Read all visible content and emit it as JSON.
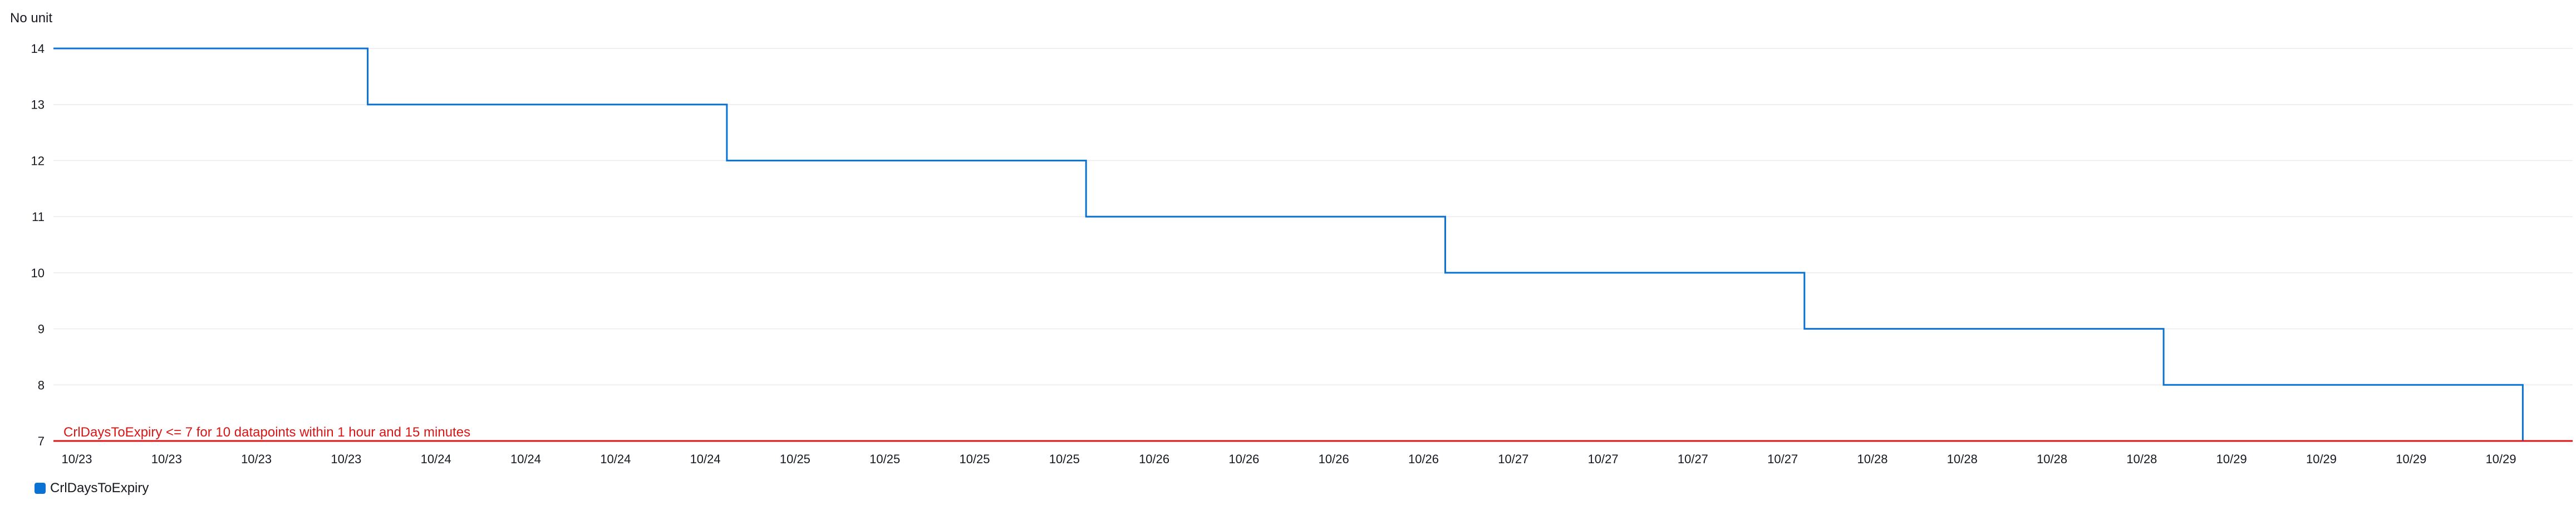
{
  "chart_data": {
    "type": "line",
    "unit_label": "No unit",
    "y_ticks": [
      7,
      8,
      9,
      10,
      11,
      12,
      13,
      14
    ],
    "ylim": [
      7,
      14
    ],
    "x_tick_labels": [
      "10/23",
      "10/23",
      "10/23",
      "10/23",
      "10/24",
      "10/24",
      "10/24",
      "10/24",
      "10/25",
      "10/25",
      "10/25",
      "10/25",
      "10/26",
      "10/26",
      "10/26",
      "10/26",
      "10/27",
      "10/27",
      "10/27",
      "10/27",
      "10/28",
      "10/28",
      "10/28",
      "10/28",
      "10/29",
      "10/29",
      "10/29",
      "10/29"
    ],
    "series": [
      {
        "name": "CrlDaysToExpiry",
        "color": "#0972d3",
        "points": [
          {
            "x": "10/23 00:00",
            "y": 14
          },
          {
            "x": "10/23 21:00",
            "y": 14
          },
          {
            "x": "10/23 21:00",
            "y": 13
          },
          {
            "x": "10/24 21:00",
            "y": 13
          },
          {
            "x": "10/24 21:00",
            "y": 12
          },
          {
            "x": "10/25 21:00",
            "y": 12
          },
          {
            "x": "10/25 21:00",
            "y": 11
          },
          {
            "x": "10/26 21:00",
            "y": 11
          },
          {
            "x": "10/26 21:00",
            "y": 10
          },
          {
            "x": "10/27 21:00",
            "y": 10
          },
          {
            "x": "10/27 21:00",
            "y": 9
          },
          {
            "x": "10/28 21:00",
            "y": 9
          },
          {
            "x": "10/28 21:00",
            "y": 8
          },
          {
            "x": "10/29 21:00",
            "y": 8
          },
          {
            "x": "10/29 21:00",
            "y": 7
          }
        ]
      }
    ],
    "threshold": {
      "value": 7,
      "label": "CrlDaysToExpiry <= 7 for 10 datapoints within 1 hour and 15 minutes",
      "color": "#d91515"
    },
    "grid": true,
    "legend_placement": "bottom-left"
  }
}
